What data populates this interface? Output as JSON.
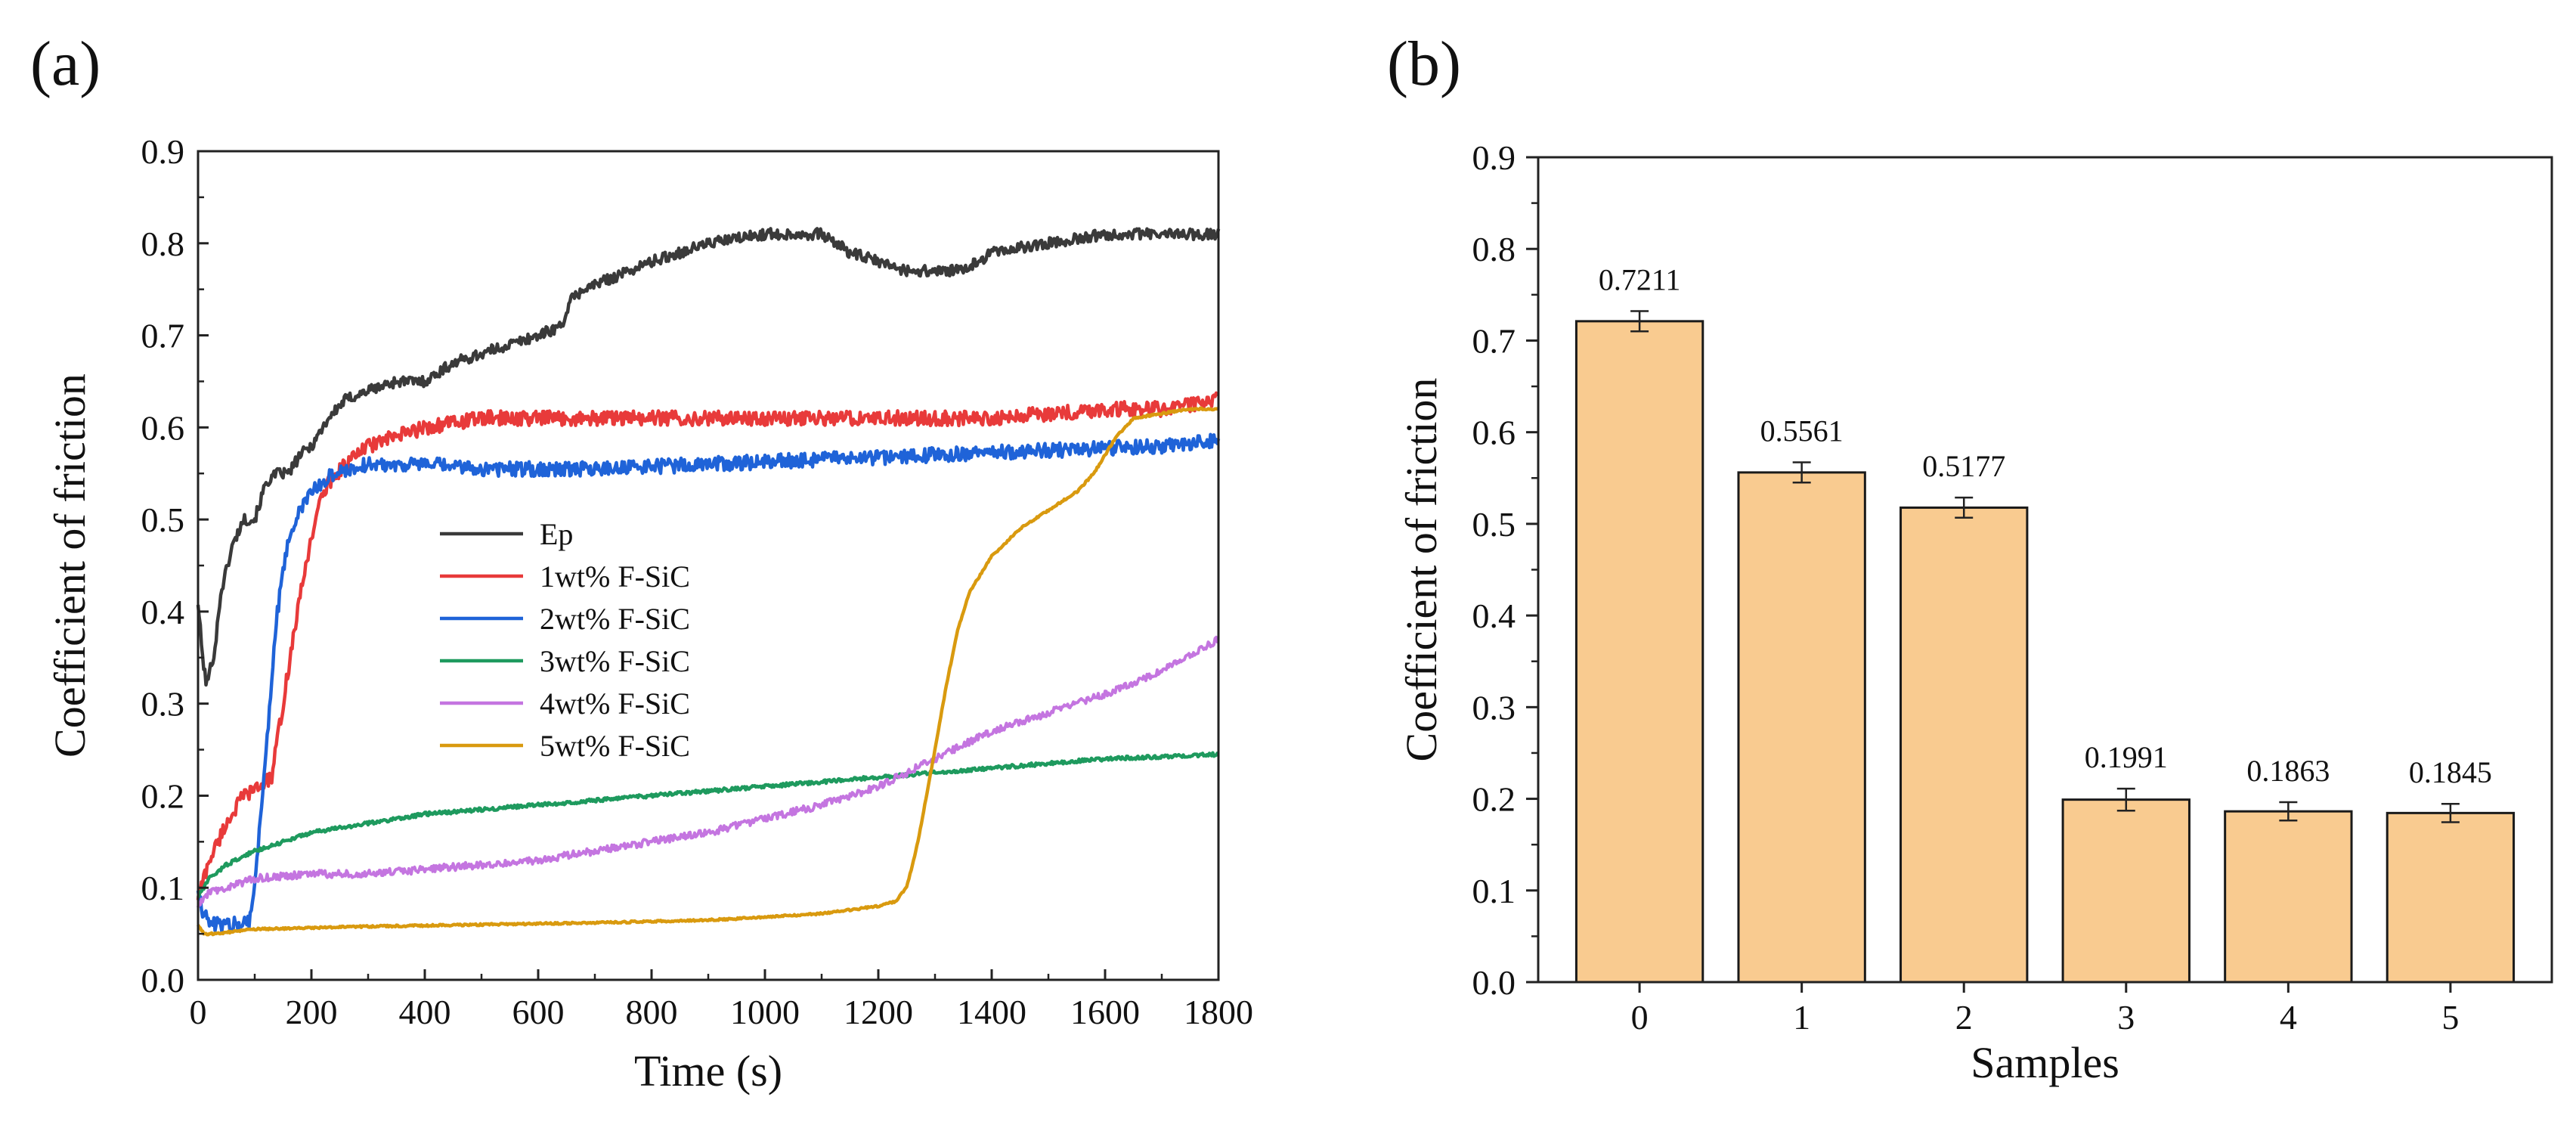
{
  "figure": {
    "panels": [
      "(a)",
      "(b)"
    ]
  },
  "chart_data": [
    {
      "panel": "(a)",
      "type": "line",
      "title": "",
      "xlabel": "Time (s)",
      "ylabel": "Coefficient of friction",
      "xlim": [
        0,
        1800
      ],
      "ylim": [
        0.0,
        0.9
      ],
      "xticks": [
        "0",
        "200",
        "400",
        "600",
        "800",
        "1000",
        "1200",
        "1400",
        "1600",
        "1800"
      ],
      "yticks": [
        "0.0",
        "0.1",
        "0.2",
        "0.3",
        "0.4",
        "0.5",
        "0.6",
        "0.7",
        "0.8",
        "0.9"
      ],
      "legend_position": "center",
      "series": [
        {
          "name": "Ep",
          "color": "#3a3a3a",
          "noise": 0.006,
          "x": [
            0,
            8,
            15,
            30,
            40,
            60,
            80,
            100,
            120,
            140,
            160,
            180,
            200,
            230,
            260,
            300,
            350,
            400,
            450,
            500,
            550,
            600,
            640,
            660,
            680,
            720,
            800,
            900,
            1000,
            1100,
            1150,
            1200,
            1250,
            1300,
            1350,
            1400,
            1500,
            1600,
            1700,
            1800
          ],
          "y": [
            0.41,
            0.35,
            0.32,
            0.36,
            0.42,
            0.47,
            0.5,
            0.5,
            0.54,
            0.55,
            0.55,
            0.57,
            0.58,
            0.61,
            0.63,
            0.64,
            0.65,
            0.65,
            0.67,
            0.68,
            0.69,
            0.7,
            0.71,
            0.74,
            0.75,
            0.76,
            0.78,
            0.8,
            0.81,
            0.81,
            0.79,
            0.78,
            0.77,
            0.77,
            0.77,
            0.79,
            0.8,
            0.81,
            0.81,
            0.81
          ]
        },
        {
          "name": "1wt% F-SiC",
          "color": "#e83a3a",
          "noise": 0.008,
          "x": [
            0,
            20,
            50,
            80,
            110,
            130,
            150,
            170,
            190,
            210,
            230,
            260,
            300,
            350,
            400,
            500,
            600,
            700,
            800,
            1000,
            1200,
            1400,
            1600,
            1700,
            1800
          ],
          "y": [
            0.09,
            0.13,
            0.17,
            0.2,
            0.21,
            0.22,
            0.3,
            0.38,
            0.45,
            0.51,
            0.54,
            0.56,
            0.58,
            0.59,
            0.6,
            0.61,
            0.61,
            0.61,
            0.61,
            0.61,
            0.61,
            0.61,
            0.62,
            0.62,
            0.63
          ]
        },
        {
          "name": "2wt% F-SiC",
          "color": "#1f63d8",
          "noise": 0.008,
          "x": [
            0,
            10,
            25,
            60,
            90,
            100,
            120,
            140,
            160,
            180,
            200,
            240,
            300,
            400,
            500,
            700,
            900,
            1100,
            1300,
            1500,
            1700,
            1800
          ],
          "y": [
            0.1,
            0.07,
            0.06,
            0.06,
            0.065,
            0.1,
            0.25,
            0.4,
            0.48,
            0.51,
            0.53,
            0.55,
            0.56,
            0.56,
            0.555,
            0.555,
            0.56,
            0.565,
            0.57,
            0.575,
            0.58,
            0.585
          ]
        },
        {
          "name": "3wt% F-SiC",
          "color": "#1e9a5e",
          "noise": 0.002,
          "x": [
            0,
            20,
            50,
            100,
            150,
            200,
            300,
            400,
            600,
            800,
            1000,
            1200,
            1400,
            1600,
            1800
          ],
          "y": [
            0.09,
            0.11,
            0.125,
            0.14,
            0.15,
            0.16,
            0.17,
            0.18,
            0.19,
            0.2,
            0.21,
            0.22,
            0.23,
            0.24,
            0.245
          ]
        },
        {
          "name": "4wt% F-SiC",
          "color": "#c475e0",
          "noise": 0.004,
          "x": [
            0,
            20,
            50,
            100,
            200,
            300,
            400,
            500,
            600,
            700,
            800,
            900,
            1000,
            1100,
            1200,
            1300,
            1400,
            1500,
            1600,
            1700,
            1800
          ],
          "y": [
            0.08,
            0.095,
            0.1,
            0.11,
            0.115,
            0.115,
            0.12,
            0.125,
            0.13,
            0.14,
            0.15,
            0.16,
            0.175,
            0.19,
            0.21,
            0.24,
            0.27,
            0.29,
            0.31,
            0.335,
            0.37
          ]
        },
        {
          "name": "5wt% F-SiC",
          "color": "#d99a0f",
          "noise": 0.001,
          "x": [
            0,
            10,
            30,
            100,
            300,
            500,
            700,
            900,
            1000,
            1100,
            1200,
            1230,
            1250,
            1270,
            1300,
            1320,
            1340,
            1360,
            1400,
            1450,
            1500,
            1550,
            1580,
            1600,
            1620,
            1650,
            1700,
            1750,
            1800
          ],
          "y": [
            0.06,
            0.05,
            0.05,
            0.055,
            0.058,
            0.06,
            0.062,
            0.065,
            0.068,
            0.072,
            0.08,
            0.085,
            0.1,
            0.15,
            0.25,
            0.32,
            0.38,
            0.42,
            0.46,
            0.49,
            0.51,
            0.53,
            0.55,
            0.57,
            0.59,
            0.61,
            0.615,
            0.62,
            0.62
          ]
        }
      ]
    },
    {
      "panel": "(b)",
      "type": "bar",
      "title": "",
      "xlabel": "Samples",
      "ylabel": "Coefficient of friction",
      "categories": [
        "0",
        "1",
        "2",
        "3",
        "4",
        "5"
      ],
      "values": [
        0.7211,
        0.5561,
        0.5177,
        0.1991,
        0.1863,
        0.1845
      ],
      "value_labels": [
        "0.7211",
        "0.5561",
        "0.5177",
        "0.1991",
        "0.1863",
        "0.1845"
      ],
      "errors": [
        0.011,
        0.011,
        0.011,
        0.012,
        0.01,
        0.01
      ],
      "ylim": [
        0.0,
        0.9
      ],
      "yticks": [
        "0.0",
        "0.1",
        "0.2",
        "0.3",
        "0.4",
        "0.5",
        "0.6",
        "0.7",
        "0.8",
        "0.9"
      ],
      "bar_color": "#f9cb90",
      "edge_color": "#1a1a1a"
    }
  ]
}
